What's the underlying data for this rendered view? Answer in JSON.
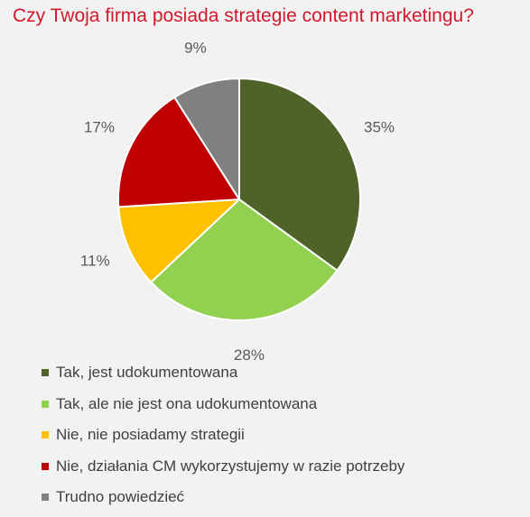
{
  "chart_data": {
    "type": "pie",
    "title": "Czy Twoja firma posiada strategie content marketingu?",
    "slices": [
      {
        "label": "Tak, jest udokumentowana",
        "value": 35,
        "display": "35%",
        "color": "#4f6228"
      },
      {
        "label": "Tak, ale nie jest ona udokumentowana",
        "value": 28,
        "display": "28%",
        "color": "#92d050"
      },
      {
        "label": "Nie, nie posiadamy strategii",
        "value": 11,
        "display": "11%",
        "color": "#ffc000"
      },
      {
        "label": "Nie, działania CM wykorzystujemy w razie potrzeby",
        "value": 17,
        "display": "17%",
        "color": "#c00000"
      },
      {
        "label": "Trudno powiedzieć",
        "value": 9,
        "display": "9%",
        "color": "#808080"
      }
    ],
    "start": "top",
    "direction": "clockwise",
    "legend_position": "bottom-left"
  }
}
